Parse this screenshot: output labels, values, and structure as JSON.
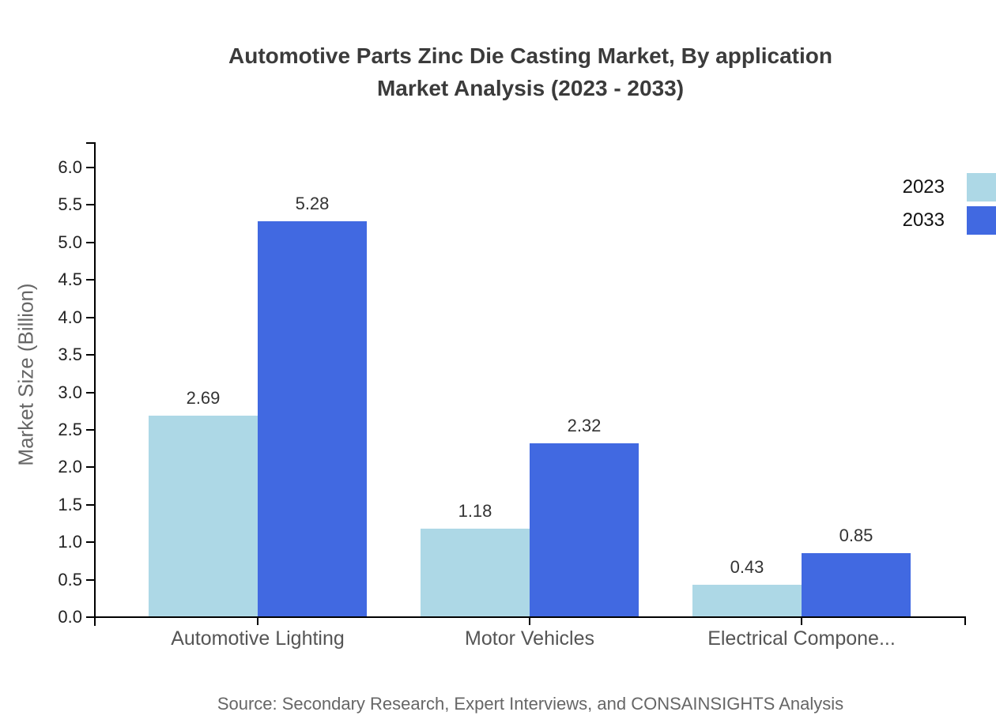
{
  "title": {
    "line1": "Automotive Parts Zinc Die Casting Market, By application",
    "line2": "Market Analysis (2023 - 2033)"
  },
  "source_note": "Source: Secondary Research, Expert Interviews, and CONSAINSIGHTS Analysis",
  "colors": {
    "series_2023": "#ADD8E6",
    "series_2033": "#4169E1",
    "axis": "#000000",
    "title_text": "#3b3b3b",
    "muted_text": "#666666"
  },
  "chart_data": {
    "type": "bar",
    "title": "Automotive Parts Zinc Die Casting Market, By application Market Analysis (2023 - 2033)",
    "categories": [
      "Automotive Lighting",
      "Motor Vehicles",
      "Electrical Compone..."
    ],
    "series": [
      {
        "name": "2023",
        "color": "#ADD8E6",
        "values": [
          2.69,
          1.18,
          0.43
        ]
      },
      {
        "name": "2033",
        "color": "#4169E1",
        "values": [
          5.28,
          2.32,
          0.85
        ]
      }
    ],
    "value_labels": [
      "2.69",
      "5.28",
      "1.18",
      "2.32",
      "0.43",
      "0.85"
    ],
    "xlabel": "",
    "ylabel": "Market Size (Billion)",
    "ylim": [
      0,
      6.5
    ],
    "yticks": [
      "0.0",
      "0.5",
      "1.0",
      "1.5",
      "2.0",
      "2.5",
      "3.0",
      "3.5",
      "4.0",
      "4.5",
      "5.0",
      "5.5",
      "6.0"
    ],
    "grid": false,
    "legend_position": "top-right",
    "legend": [
      "2023",
      "2033"
    ]
  }
}
